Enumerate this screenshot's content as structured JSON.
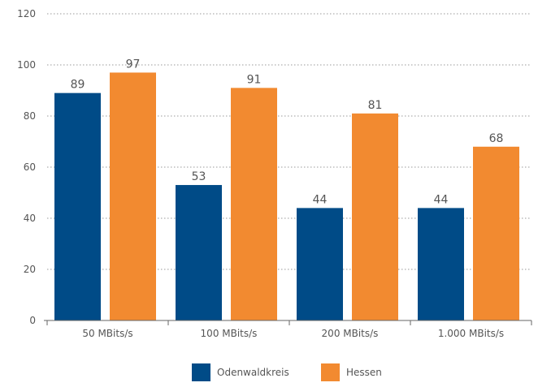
{
  "chart_data": {
    "type": "bar",
    "categories": [
      "50 MBits/s",
      "100 MBits/s",
      "200 MBits/s",
      "1.000 MBits/s"
    ],
    "series": [
      {
        "name": "Odenwaldkreis",
        "values": [
          89,
          53,
          44,
          44
        ],
        "color": "#004B87"
      },
      {
        "name": "Hessen",
        "values": [
          97,
          91,
          81,
          68
        ],
        "color": "#F28A30"
      }
    ],
    "title": "",
    "xlabel": "",
    "ylabel": "",
    "ylim": [
      0,
      120
    ],
    "yticks": [
      0,
      20,
      40,
      60,
      80,
      100,
      120
    ],
    "grid": true,
    "legend": "bottom-center"
  }
}
